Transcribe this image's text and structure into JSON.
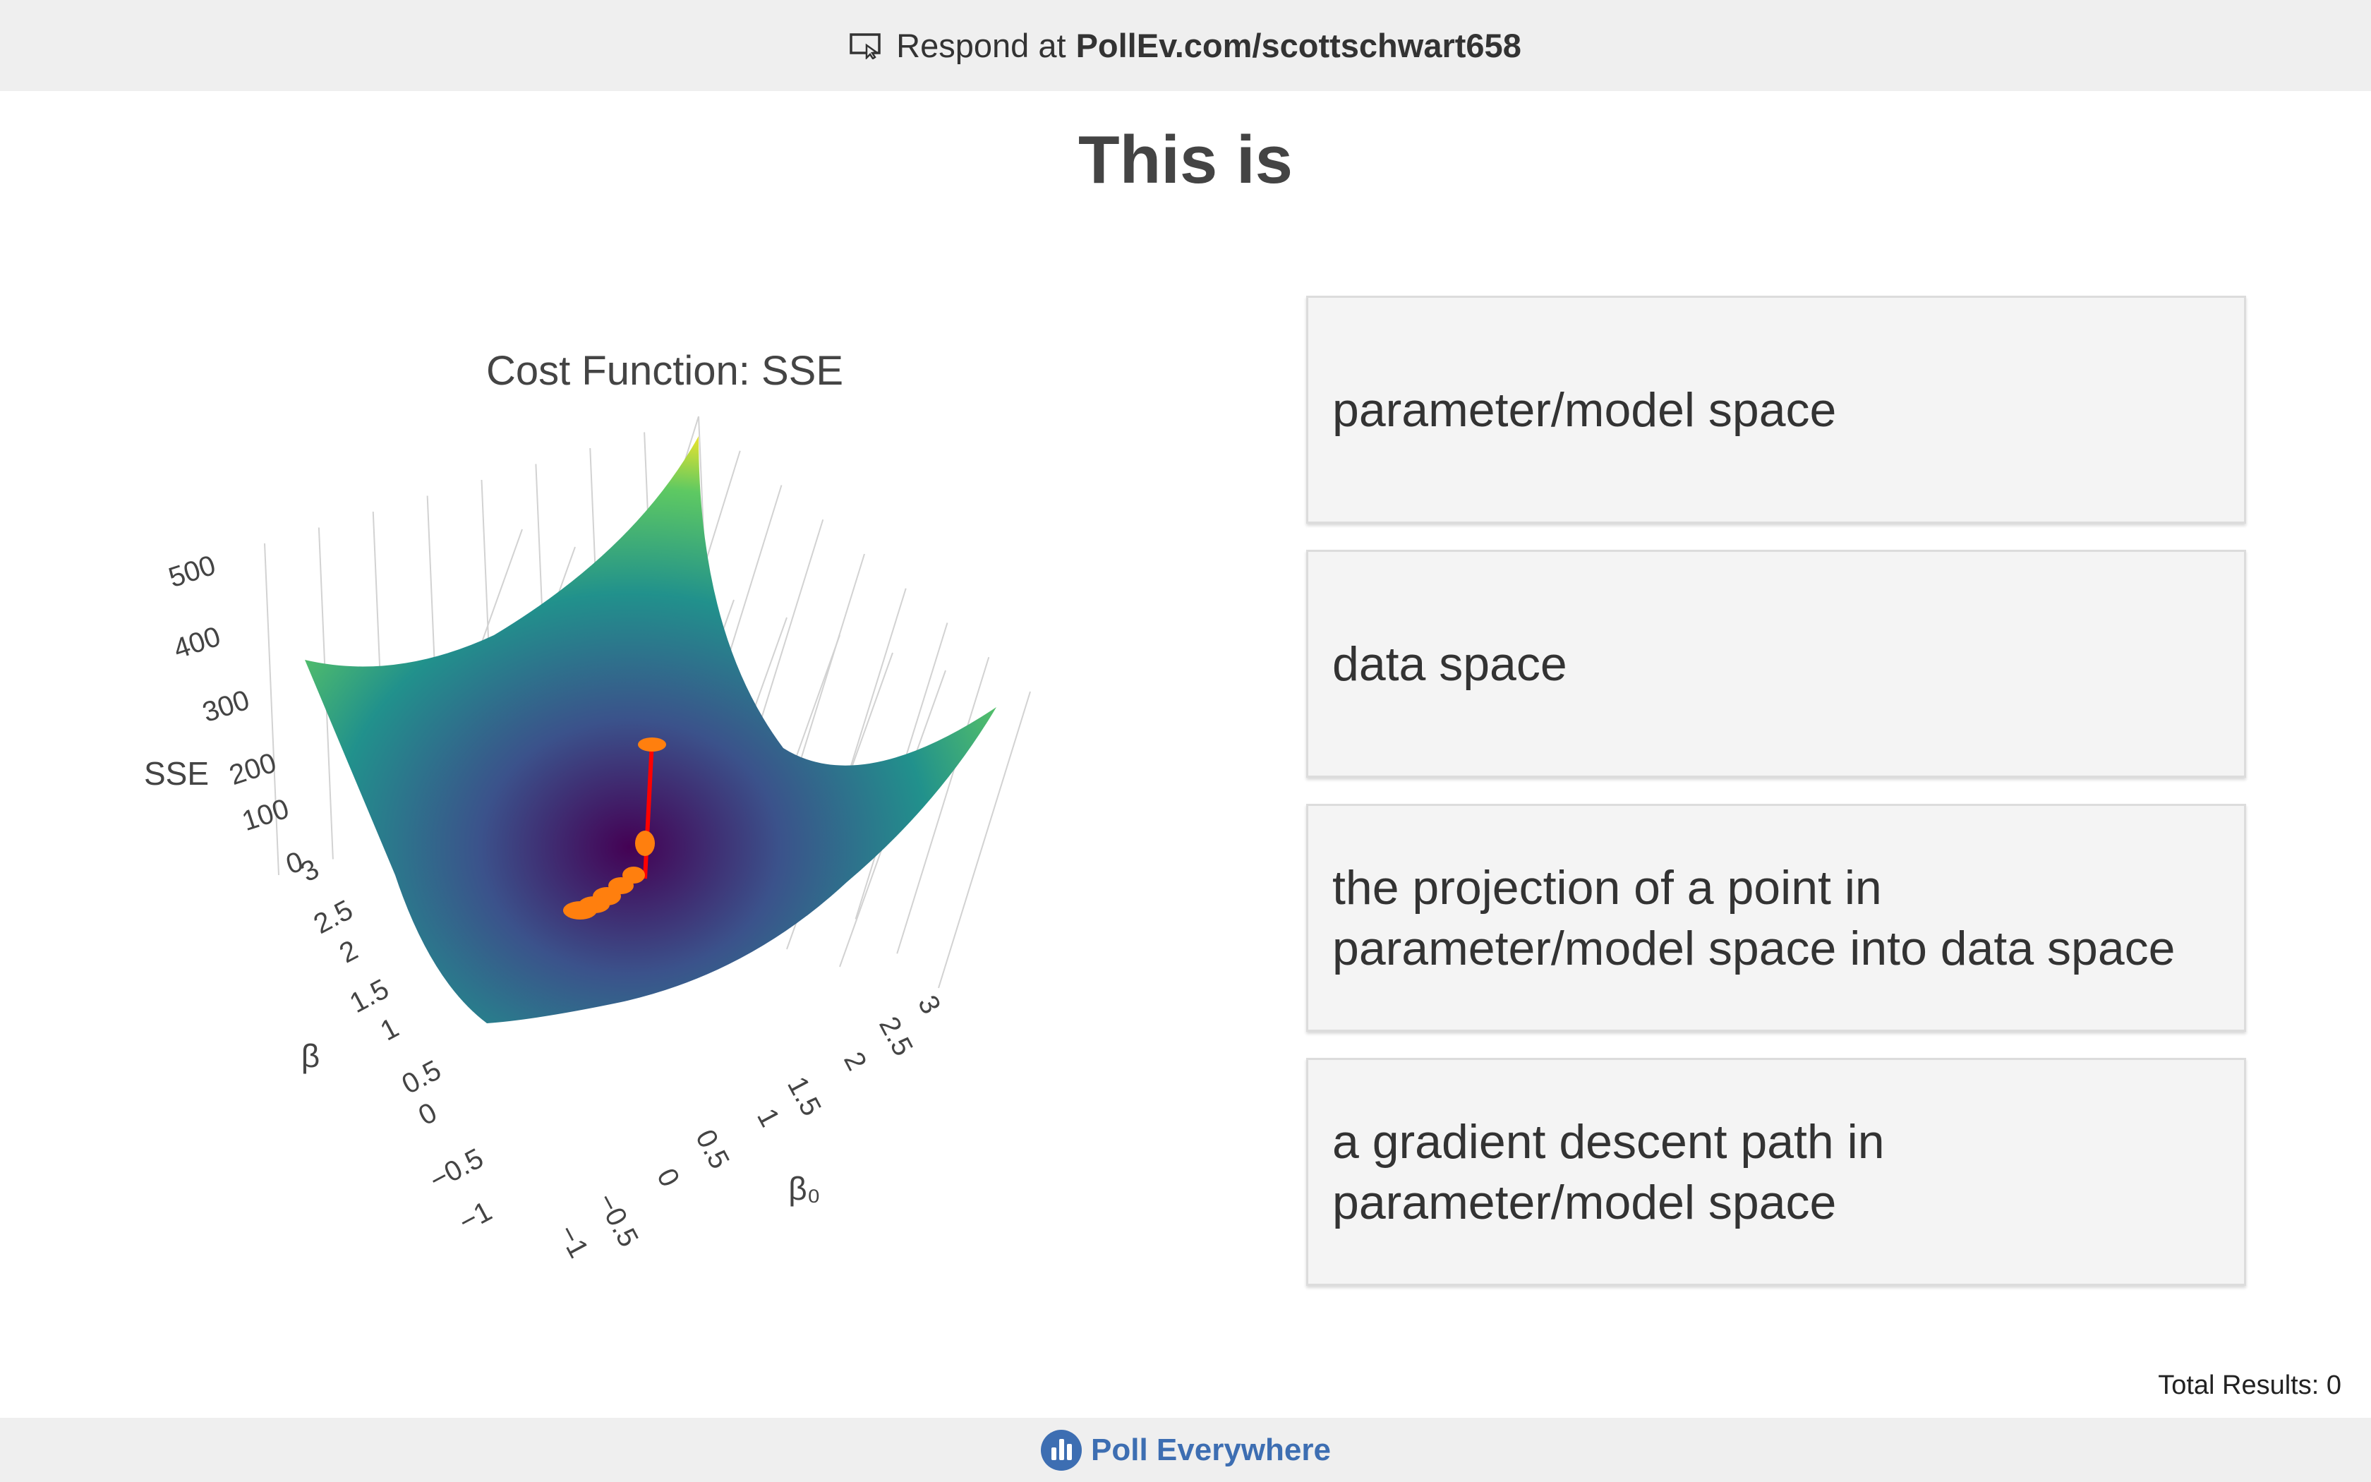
{
  "header": {
    "respond_text": "Respond at",
    "respond_url": "PollEv.com/scottschwart658"
  },
  "question": {
    "title": "This is"
  },
  "options": [
    {
      "label": "parameter/model space"
    },
    {
      "label": "data space"
    },
    {
      "label": "the projection of a point in parameter/model space into data space"
    },
    {
      "label": "a gradient descent path in parameter/model space"
    }
  ],
  "total_results": "Total Results: 0",
  "footer": {
    "brand": "Poll Everywhere"
  },
  "chart_data": {
    "type": "surface",
    "title": "Cost Function: SSE",
    "zlabel": "SSE",
    "xlabel": "β₀",
    "ylabel": "β",
    "z_ticks": [
      "0",
      "100",
      "200",
      "300",
      "400",
      "500"
    ],
    "x_ticks": [
      "−1",
      "−0.5",
      "0",
      "0.5",
      "1",
      "1.5",
      "2",
      "2.5",
      "3"
    ],
    "y_ticks": [
      "−1",
      "−0.5",
      "0",
      "0.5",
      "1",
      "1.5",
      "2",
      "2.5",
      "3"
    ],
    "colorscale": [
      "#440154",
      "#3b528b",
      "#21918c",
      "#5ec962",
      "#fde725"
    ],
    "path_color": "#ff0000",
    "marker_color": "#ff7f0e"
  }
}
